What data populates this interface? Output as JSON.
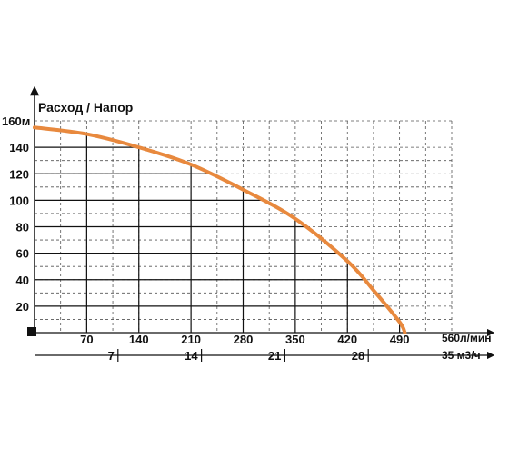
{
  "chart_data": {
    "type": "line",
    "title": "Расход / Напор",
    "y_axis": {
      "range": [
        0,
        160
      ],
      "ticks": [
        20,
        40,
        60,
        80,
        100,
        120,
        140
      ],
      "top_label": "160м"
    },
    "x_axis_lpm": {
      "range": [
        0,
        560
      ],
      "ticks": [
        70,
        140,
        210,
        280,
        350,
        420,
        490
      ],
      "end_label": "560л/мин"
    },
    "x_axis_m3h": {
      "range": [
        0,
        35
      ],
      "ticks": [
        7,
        14,
        21,
        28
      ],
      "end_label": "35 м3/ч"
    },
    "grid": "dashed",
    "series": [
      {
        "color": "#e8893e",
        "x": [
          0,
          70,
          140,
          210,
          280,
          350,
          420,
          455,
          490,
          497
        ],
        "y": [
          155,
          150,
          140,
          127,
          108,
          86,
          54,
          32,
          8,
          0
        ]
      }
    ]
  }
}
